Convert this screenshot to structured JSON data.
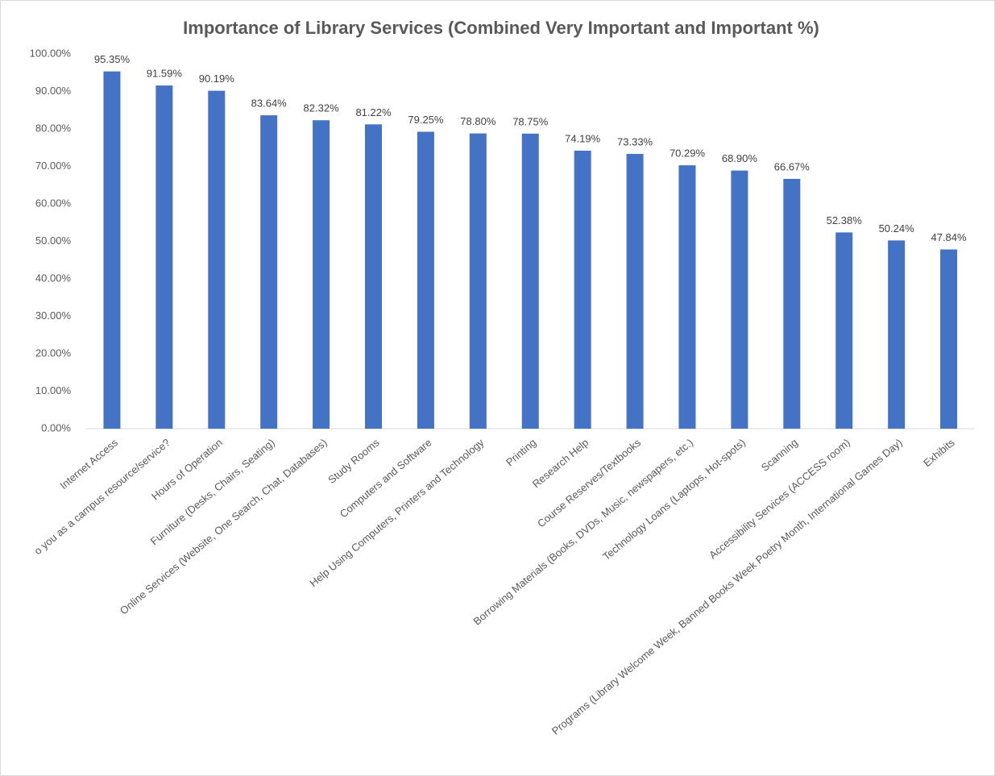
{
  "chart_data": {
    "type": "bar",
    "title": "Importance of Library Services (Combined Very Important and Important %)",
    "categories": [
      "Internet Access",
      "o you as a campus resource/service?",
      "Hours of Operation",
      "Furniture (Desks, Chairs, Seating)",
      "Online Services (Website, One Search, Chat, Databases)",
      "Study Rooms",
      "Computers and Software",
      "Help Using Computers, Printers and Technology",
      "Printing",
      "Research Help",
      "Course Reserves/Textbooks",
      "Borrowing Materials (Books, DVDs, Music, newspapers, etc.)",
      "Technology Loans (Laptops, Hot-spots)",
      "Scanning",
      "Accessibility Services (ACCESS room)",
      "Programs (Library Welcome Week, Banned Books Week Poetry Month, International Games Day)",
      "Exhibits"
    ],
    "values": [
      95.35,
      91.59,
      90.19,
      83.64,
      82.32,
      81.22,
      79.25,
      78.8,
      78.75,
      74.19,
      73.33,
      70.29,
      68.9,
      66.67,
      52.38,
      50.24,
      47.84
    ],
    "value_labels": [
      "95.35%",
      "91.59%",
      "90.19%",
      "83.64%",
      "82.32%",
      "81.22%",
      "79.25%",
      "78.80%",
      "78.75%",
      "74.19%",
      "73.33%",
      "70.29%",
      "68.90%",
      "66.67%",
      "52.38%",
      "50.24%",
      "47.84%"
    ],
    "color": "#4472c4",
    "ylim": [
      0,
      100
    ],
    "yticks": [
      {
        "value": 0,
        "label": "0.00%"
      },
      {
        "value": 10,
        "label": "10.00%"
      },
      {
        "value": 20,
        "label": "20.00%"
      },
      {
        "value": 30,
        "label": "30.00%"
      },
      {
        "value": 40,
        "label": "40.00%"
      },
      {
        "value": 50,
        "label": "50.00%"
      },
      {
        "value": 60,
        "label": "60.00%"
      },
      {
        "value": 70,
        "label": "70.00%"
      },
      {
        "value": 80,
        "label": "80.00%"
      },
      {
        "value": 90,
        "label": "90.00%"
      },
      {
        "value": 100,
        "label": "100.00%"
      }
    ],
    "grid": false
  }
}
